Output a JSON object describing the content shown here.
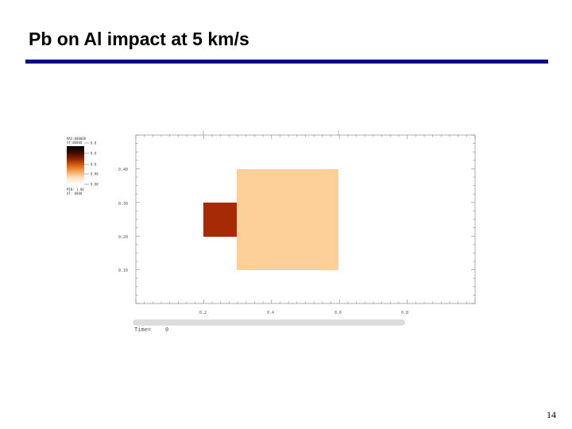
{
  "slide": {
    "title": "Pb on Al impact at 5 km/s",
    "page_number": "14",
    "rule_color": "#0d0d7e"
  },
  "plot": {
    "x_tick_labels": [
      "0.2",
      "0.4",
      "0.6",
      "0.8"
    ],
    "y_tick_labels": [
      "0.40",
      "0.30",
      "0.20",
      "0.10"
    ],
    "time_label": "Time=",
    "time_value": "0",
    "regions": {
      "projectile_color": "#a52a05",
      "target_color": "#fdd09a"
    },
    "legend": {
      "header_line1": "MAX:000000",
      "header_line2": "AT:00000",
      "tick_labels": [
        "0.0",
        "0.0",
        "0.0",
        "0.00",
        "0.00"
      ],
      "footer_line1": "MIN: 1.00",
      "footer_line2": "AT: 0000",
      "gradient_colors": [
        "#000000",
        "#3a0a00",
        "#8b2500",
        "#d8630f",
        "#f7a55c",
        "#fde3c4",
        "#ffffff"
      ]
    },
    "time_slider": {
      "fill_fraction": 1.0
    }
  }
}
